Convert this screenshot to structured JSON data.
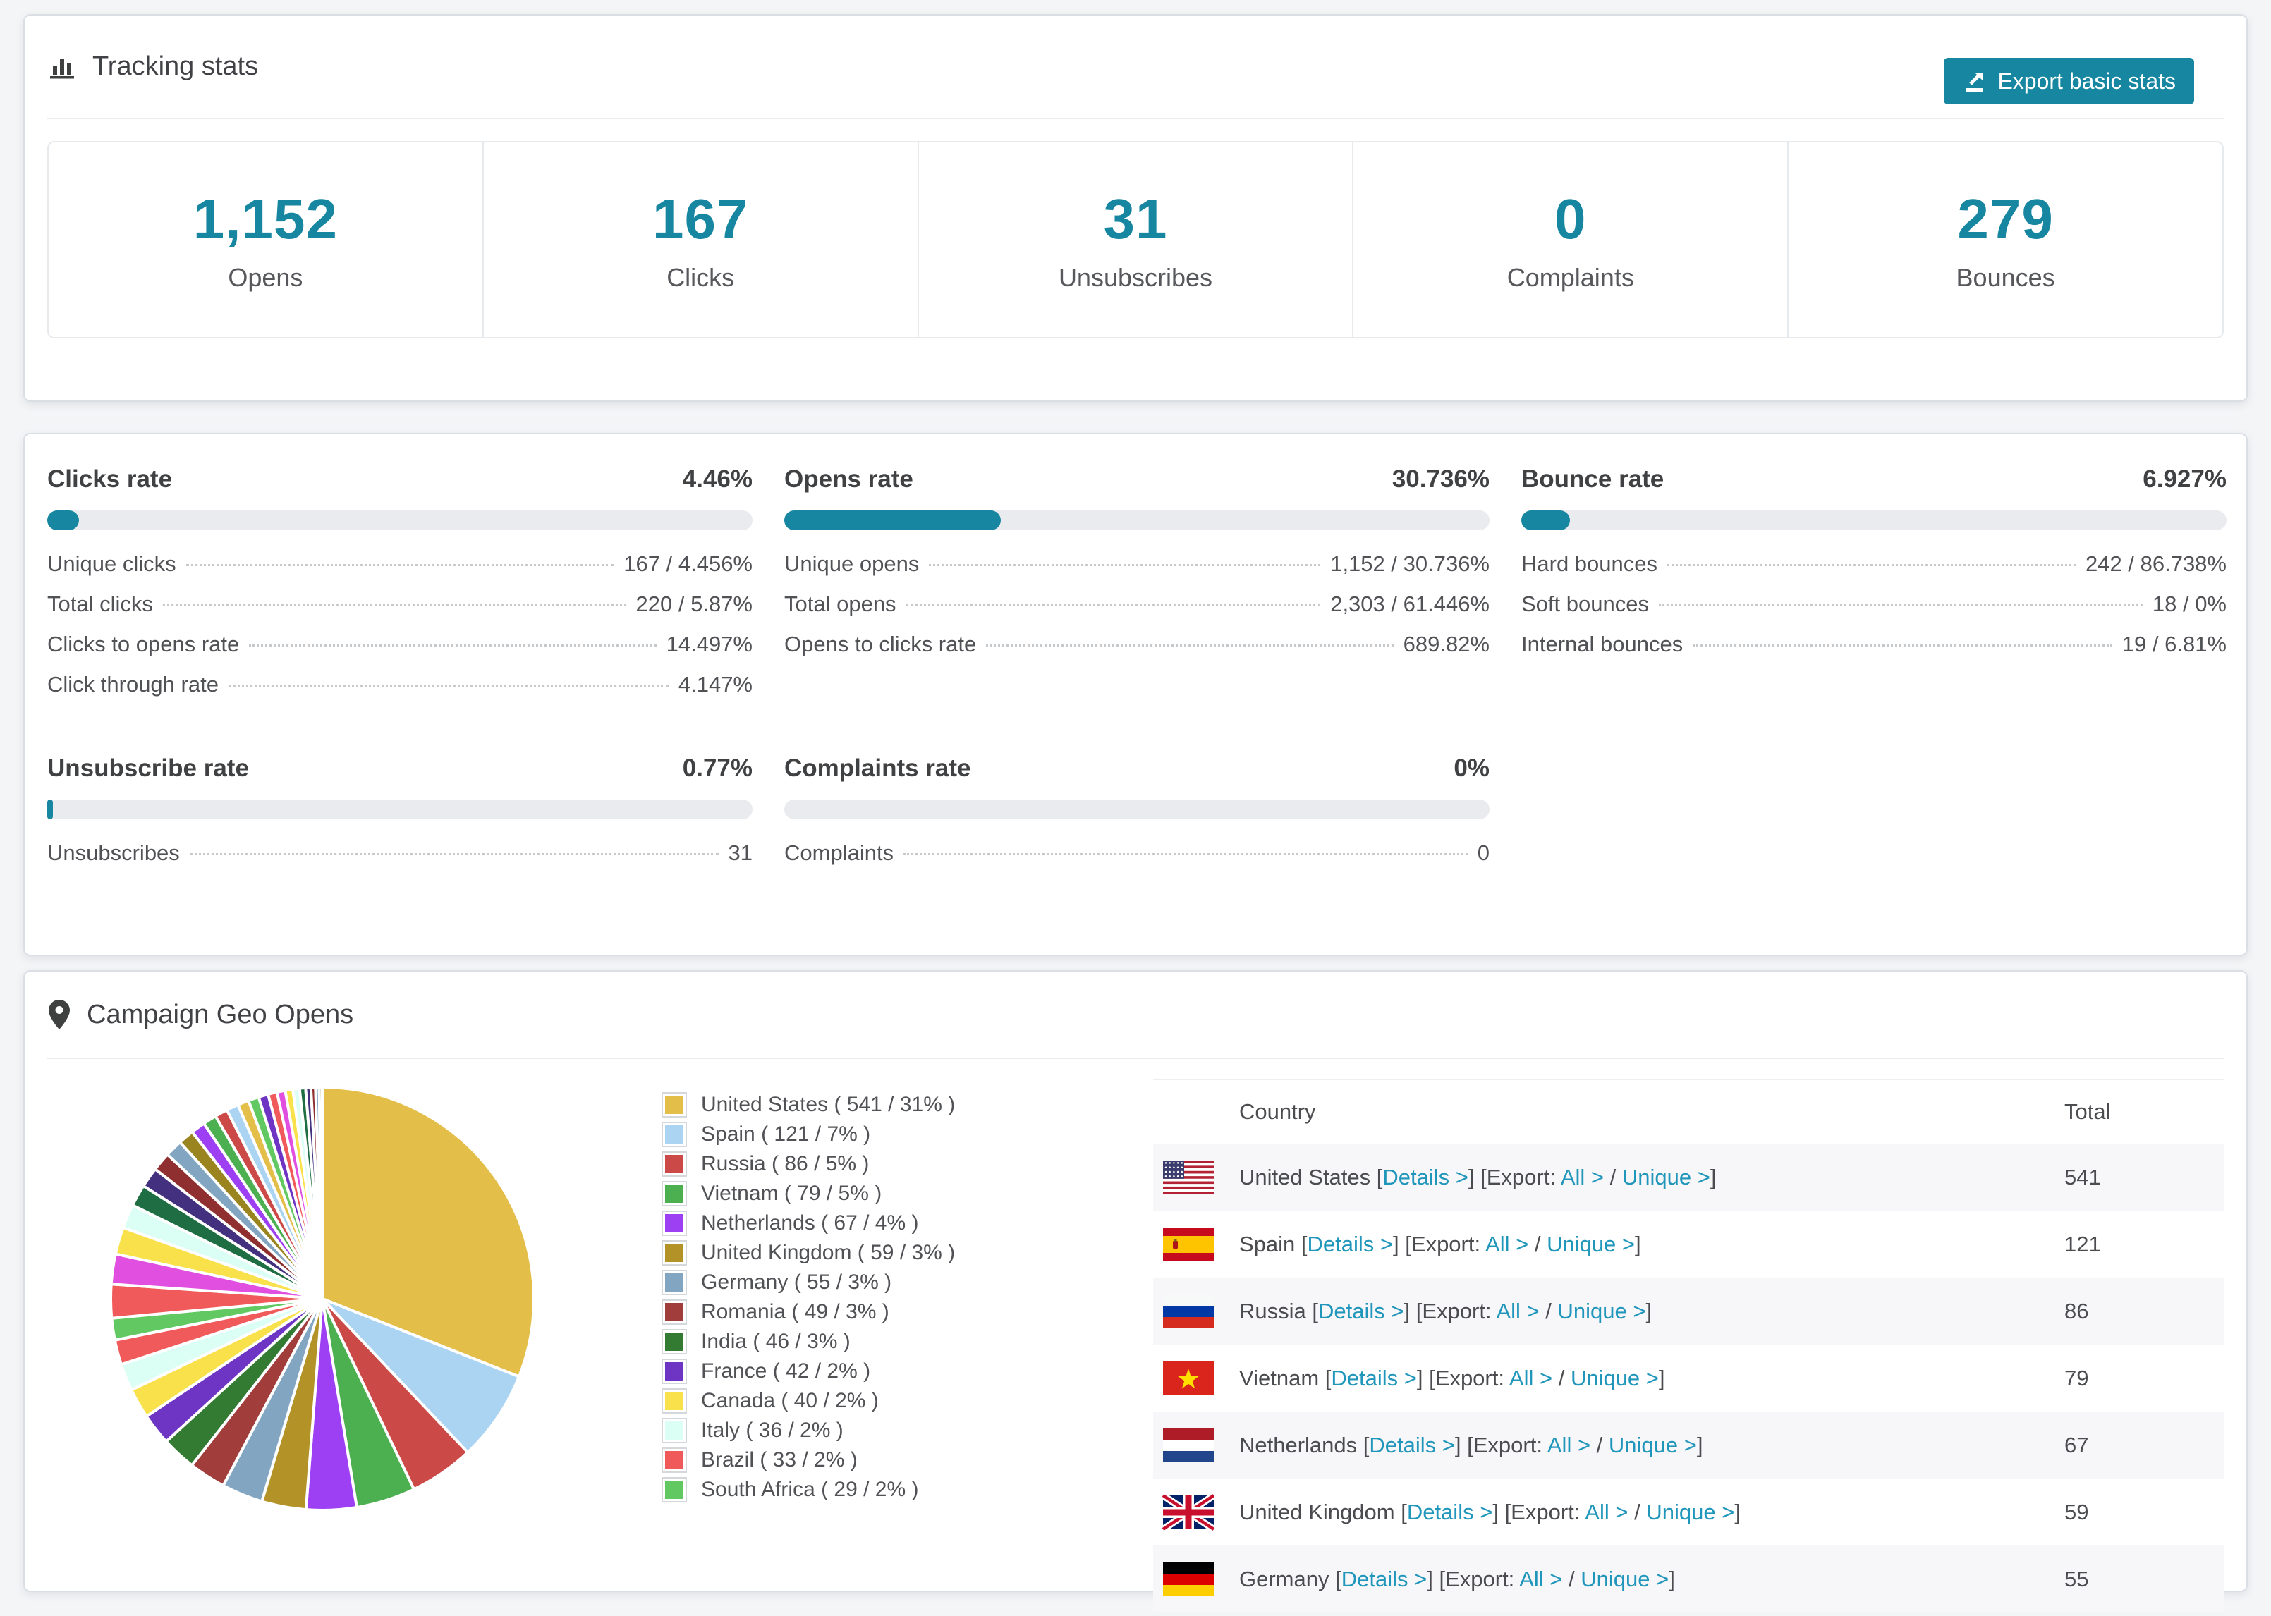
{
  "tracking": {
    "title": "Tracking stats",
    "export_button": "Export basic stats",
    "stats": [
      {
        "value": "1,152",
        "label": "Opens"
      },
      {
        "value": "167",
        "label": "Clicks"
      },
      {
        "value": "31",
        "label": "Unsubscribes"
      },
      {
        "value": "0",
        "label": "Complaints"
      },
      {
        "value": "279",
        "label": "Bounces"
      }
    ]
  },
  "rates": [
    {
      "title": "Clicks rate",
      "value": "4.46%",
      "percent": 4.46,
      "rows": [
        {
          "label": "Unique clicks",
          "value": "167 / 4.456%"
        },
        {
          "label": "Total clicks",
          "value": "220 / 5.87%"
        },
        {
          "label": "Clicks to opens rate",
          "value": "14.497%"
        },
        {
          "label": "Click through rate",
          "value": "4.147%"
        }
      ]
    },
    {
      "title": "Opens rate",
      "value": "30.736%",
      "percent": 30.736,
      "rows": [
        {
          "label": "Unique opens",
          "value": "1,152 / 30.736%"
        },
        {
          "label": "Total opens",
          "value": "2,303 / 61.446%"
        },
        {
          "label": "Opens to clicks rate",
          "value": "689.82%"
        }
      ]
    },
    {
      "title": "Bounce rate",
      "value": "6.927%",
      "percent": 6.927,
      "rows": [
        {
          "label": "Hard bounces",
          "value": "242 / 86.738%"
        },
        {
          "label": "Soft bounces",
          "value": "18 / 0%"
        },
        {
          "label": "Internal bounces",
          "value": "19 / 6.81%"
        }
      ]
    },
    {
      "title": "Unsubscribe rate",
      "value": "0.77%",
      "percent": 0.77,
      "rows": [
        {
          "label": "Unsubscribes",
          "value": "31"
        }
      ]
    },
    {
      "title": "Complaints rate",
      "value": "0%",
      "percent": 0,
      "rows": [
        {
          "label": "Complaints",
          "value": "0"
        }
      ]
    }
  ],
  "geo": {
    "title": "Campaign Geo Opens",
    "links": {
      "open_bracket": "[",
      "close_bracket": "]",
      "details": "Details >",
      "export_label": "[Export:",
      "all": "All >",
      "unique": "Unique >",
      "separator": "/"
    },
    "table": {
      "headers": [
        "Country",
        "Total"
      ],
      "rows": [
        {
          "flag": "us",
          "country": "United States",
          "total": "541"
        },
        {
          "flag": "es",
          "country": "Spain",
          "total": "121"
        },
        {
          "flag": "ru",
          "country": "Russia",
          "total": "86"
        },
        {
          "flag": "vn",
          "country": "Vietnam",
          "total": "79"
        },
        {
          "flag": "nl",
          "country": "Netherlands",
          "total": "67"
        },
        {
          "flag": "gb",
          "country": "United Kingdom",
          "total": "59"
        },
        {
          "flag": "de",
          "country": "Germany",
          "total": "55"
        }
      ]
    }
  },
  "chart_data": {
    "type": "pie",
    "title": "Campaign Geo Opens",
    "legend_position": "right",
    "categories": [
      "United States",
      "Spain",
      "Russia",
      "Vietnam",
      "Netherlands",
      "United Kingdom",
      "Germany",
      "Romania",
      "India",
      "France",
      "Canada",
      "Italy",
      "Brazil",
      "South Africa"
    ],
    "values": [
      541,
      121,
      86,
      79,
      67,
      59,
      55,
      49,
      46,
      42,
      40,
      36,
      33,
      29
    ],
    "colors": [
      "#e3be49",
      "#abd3f2",
      "#cb4a48",
      "#4caf50",
      "#9d3ff2",
      "#b39327",
      "#82a6c2",
      "#a13d3b",
      "#337a33",
      "#6e35c5",
      "#f8e14b",
      "#dcfff5",
      "#f05a5a",
      "#62c962"
    ],
    "legend": [
      "United States ( 541 / 31% )",
      "Spain ( 121 / 7% )",
      "Russia ( 86 / 5% )",
      "Vietnam ( 79 / 5% )",
      "Netherlands ( 67 / 4% )",
      "United Kingdom ( 59 / 3% )",
      "Germany ( 55 / 3% )",
      "Romania ( 49 / 3% )",
      "India ( 46 / 3% )",
      "France ( 42 / 2% )",
      "Canada ( 40 / 2% )",
      "Italy ( 36 / 2% )",
      "Brazil ( 33 / 2% )",
      "South Africa ( 29 / 2% )"
    ],
    "other_values": [
      45,
      40,
      36,
      32,
      29,
      27,
      25,
      23,
      21,
      19,
      18,
      17,
      16,
      15,
      14,
      13,
      12,
      11,
      10,
      9,
      8,
      7,
      6,
      5,
      4
    ],
    "other_colors_cycle": [
      "#f05a5a",
      "#e04fe0",
      "#f8e14b",
      "#dcfff5",
      "#1f6e43",
      "#43307e",
      "#8f2f2f",
      "#82a6c2",
      "#9a8420",
      "#9d3ff2",
      "#4caf50",
      "#cb4a48",
      "#abd3f2",
      "#e3be49",
      "#62c962",
      "#6e35c5"
    ]
  }
}
